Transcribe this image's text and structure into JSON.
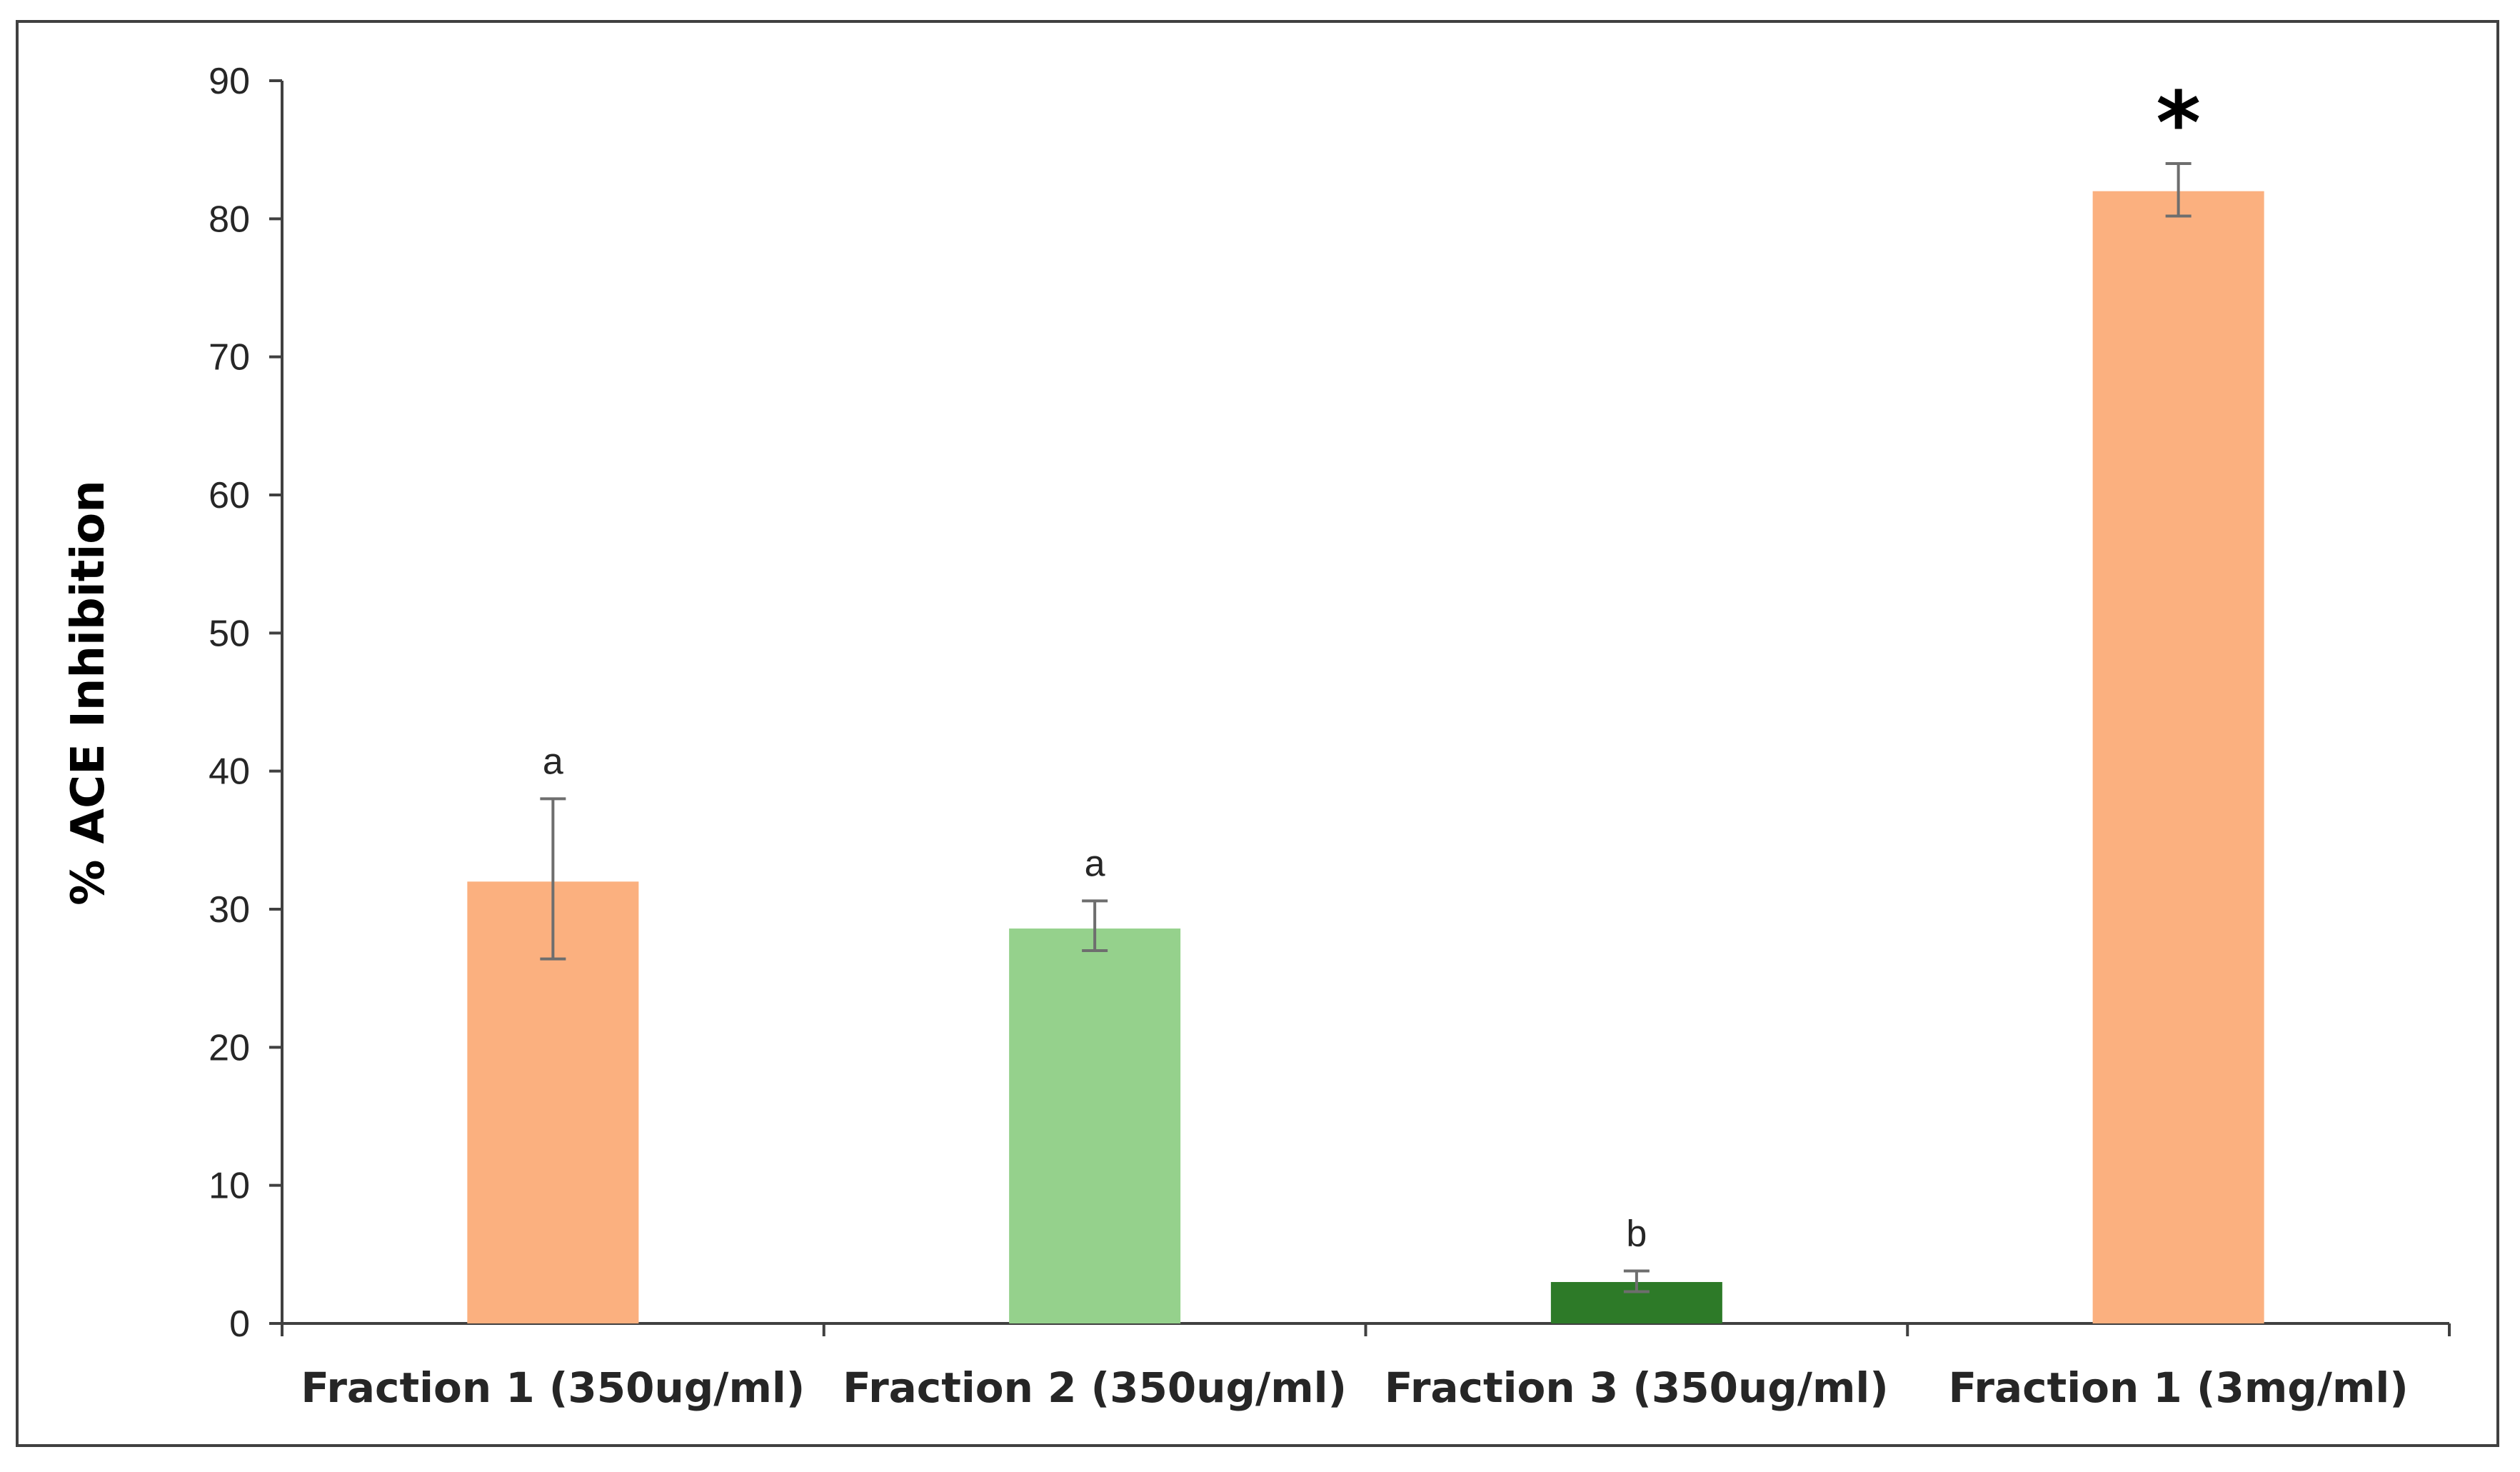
{
  "chart_data": {
    "type": "bar",
    "title": "",
    "xlabel": "",
    "ylabel": "% ACE Inhibition",
    "ylim": [
      0,
      90
    ],
    "yticks": [
      0,
      10,
      20,
      30,
      40,
      50,
      60,
      70,
      80,
      90
    ],
    "grid": false,
    "legend": "none",
    "categories": [
      "Fraction 1 (350ug/ml)",
      "Fraction 2 (350ug/ml)",
      "Fraction 3 (350ug/ml)",
      "Fraction 1 (3mg/ml)"
    ],
    "values": [
      32,
      28.6,
      3,
      82
    ],
    "error_upper": [
      38,
      30.6,
      3.8,
      84
    ],
    "error_lower": [
      26.4,
      27,
      2.3,
      80.2
    ],
    "annotations": [
      "a",
      "a",
      "b",
      "*"
    ],
    "colors": [
      "#fbb07f",
      "#95d18c",
      "#2d7a28",
      "#fbb07f"
    ]
  }
}
